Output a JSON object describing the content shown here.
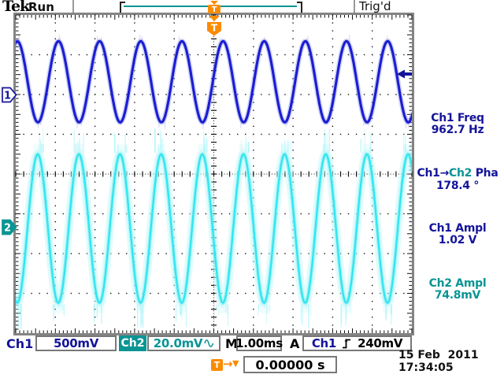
{
  "header": {
    "brand": "Tek",
    "acq_state": "Run",
    "trigger_status": "Trig'd"
  },
  "icons": {
    "down_triangle": "▼",
    "right_arrow": "→",
    "trigger_letter": "T",
    "sine_wave": "∿",
    "rising_slope": "rising-edge"
  },
  "channel_markers": {
    "ch1": "1",
    "ch2": "2"
  },
  "readouts": [
    {
      "label": "Ch1 Freq",
      "value": "962.7 Hz"
    },
    {
      "label_prefix": "Ch1→",
      "label_mid": "Ch2",
      "label_suffix": " Pha",
      "value": "178.4 °"
    },
    {
      "label": "Ch1 Ampl",
      "value": "1.02 V"
    },
    {
      "label": "Ch2 Ampl",
      "value": "74.8mV"
    }
  ],
  "status_bar": {
    "ch1_label": "Ch1",
    "ch1_scale": "500mV",
    "ch2_label": "Ch2",
    "ch2_scale": "20.0mV",
    "timebase_label": "M",
    "timebase": "1.00ms",
    "acquisition_label": "A",
    "trigger_source": "Ch1",
    "trigger_level": "240mV"
  },
  "footer": {
    "trigger_marker": "T",
    "arrow": "→",
    "triangle": "▼",
    "delay": "0.00000 s",
    "date": "15 Feb  2011",
    "time": "17:34:05"
  },
  "colors": {
    "navy_text": "#14149a",
    "teal": "#0a9494",
    "orange": "#fb8b00",
    "frame_gray": "#848484",
    "ch1_trace": "#1c1ed2",
    "ch2_trace": "#30e4ee"
  },
  "chart_data": {
    "type": "line",
    "title": "Dual-channel oscilloscope capture",
    "x_axis": {
      "units": "ms/div",
      "ms_per_div": 1.0,
      "divisions": 10,
      "trigger_delay_s": 0.0
    },
    "y_axis": {
      "divisions": 8
    },
    "series": [
      {
        "name": "Ch1",
        "volts_per_div": 0.5,
        "frequency_hz": 962.7,
        "amplitude_vpp_v": 1.02,
        "phase_deg": 0.0,
        "center_div_from_top": 1.68,
        "ground_div_from_top": 2.0,
        "noise_level": "low",
        "color": "#1c1ed2"
      },
      {
        "name": "Ch2",
        "volts_per_div": 0.02,
        "frequency_hz": 962.7,
        "amplitude_vpp_v": 0.0748,
        "phase_deg": 178.4,
        "center_div_from_top": 5.37,
        "ground_div_from_top": 5.33,
        "noise_level": "high",
        "color": "#30e4ee"
      }
    ],
    "trigger": {
      "source": "Ch1",
      "slope": "rising",
      "level_v": 0.24
    }
  }
}
